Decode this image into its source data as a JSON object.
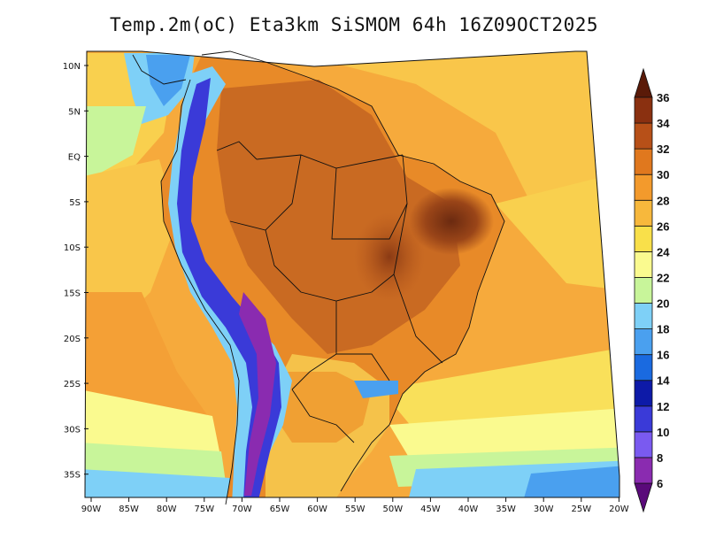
{
  "title": "Temp.2m(oC) Eta3km SiSMOM 64h 16Z09OCT2025",
  "map": {
    "lat_labels": [
      "10N",
      "5N",
      "EQ",
      "5S",
      "10S",
      "15S",
      "20S",
      "25S",
      "30S",
      "35S"
    ],
    "lon_labels": [
      "90W",
      "85W",
      "80W",
      "75W",
      "70W",
      "65W",
      "60W",
      "55W",
      "50W",
      "45W",
      "40W",
      "35W",
      "30W",
      "25W",
      "20W"
    ],
    "background_color": "#f7a73a"
  },
  "colorbar": {
    "labels": [
      "6",
      "8",
      "10",
      "12",
      "14",
      "16",
      "18",
      "20",
      "22",
      "24",
      "26",
      "28",
      "30",
      "32",
      "34",
      "36"
    ],
    "colors": [
      "#5a0a7a",
      "#8a2bb0",
      "#7a5af0",
      "#3a3ad8",
      "#0d1aa8",
      "#1a6ae0",
      "#4aa0ef",
      "#7ed0f7",
      "#c8f59a",
      "#fafa8f",
      "#f9e04a",
      "#f7b83c",
      "#f39a2c",
      "#e0781e",
      "#b75018",
      "#8a3010",
      "#5a1a08"
    ]
  }
}
